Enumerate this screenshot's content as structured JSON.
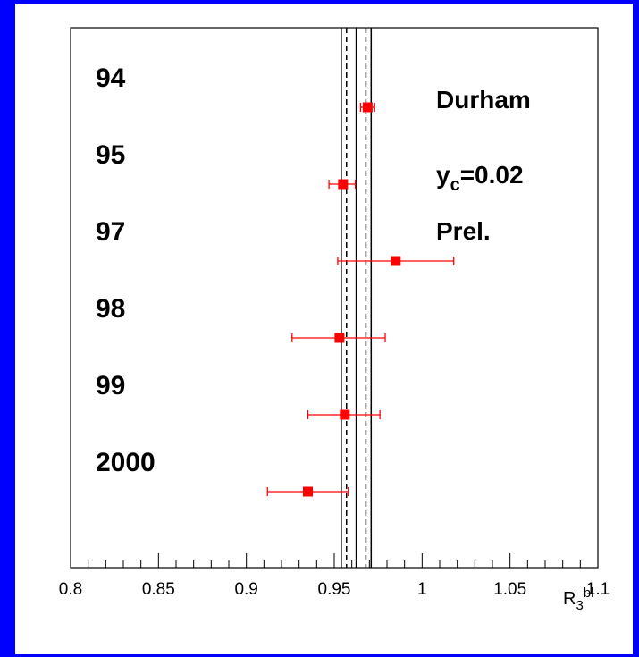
{
  "chart_data": {
    "type": "scatter",
    "xlabel_base": "R",
    "xlabel_sub": "3",
    "xlabel_sup": "bl",
    "xlim": [
      0.8,
      1.1
    ],
    "xticks": [
      "0.8",
      "0.85",
      "0.9",
      "0.95",
      "1",
      "1.05",
      "1.1"
    ],
    "xtick_values": [
      0.8,
      0.85,
      0.9,
      0.95,
      1.0,
      1.05,
      1.1
    ],
    "annotations": {
      "algorithm": "Durham",
      "ycut_base": "y",
      "ycut_sub": "c",
      "ycut_value": "=0.02",
      "status": "Prel."
    },
    "points": [
      {
        "label": "94",
        "value": 0.969,
        "err_low": 0.004,
        "err_high": 0.004
      },
      {
        "label": "95",
        "value": 0.955,
        "err_low": 0.008,
        "err_high": 0.007
      },
      {
        "label": "97",
        "value": 0.985,
        "err_low": 0.033,
        "err_high": 0.033
      },
      {
        "label": "98",
        "value": 0.953,
        "err_low": 0.027,
        "err_high": 0.026
      },
      {
        "label": "99",
        "value": 0.956,
        "err_low": 0.021,
        "err_high": 0.02
      },
      {
        "label": "2000",
        "value": 0.935,
        "err_low": 0.023,
        "err_high": 0.023
      }
    ],
    "band": {
      "central": 0.9625,
      "inner": [
        0.957,
        0.968
      ],
      "outer": [
        0.954,
        0.971
      ]
    },
    "colors": {
      "points": "#ff0000",
      "frame": "#0000ff",
      "band": "#000000"
    }
  }
}
